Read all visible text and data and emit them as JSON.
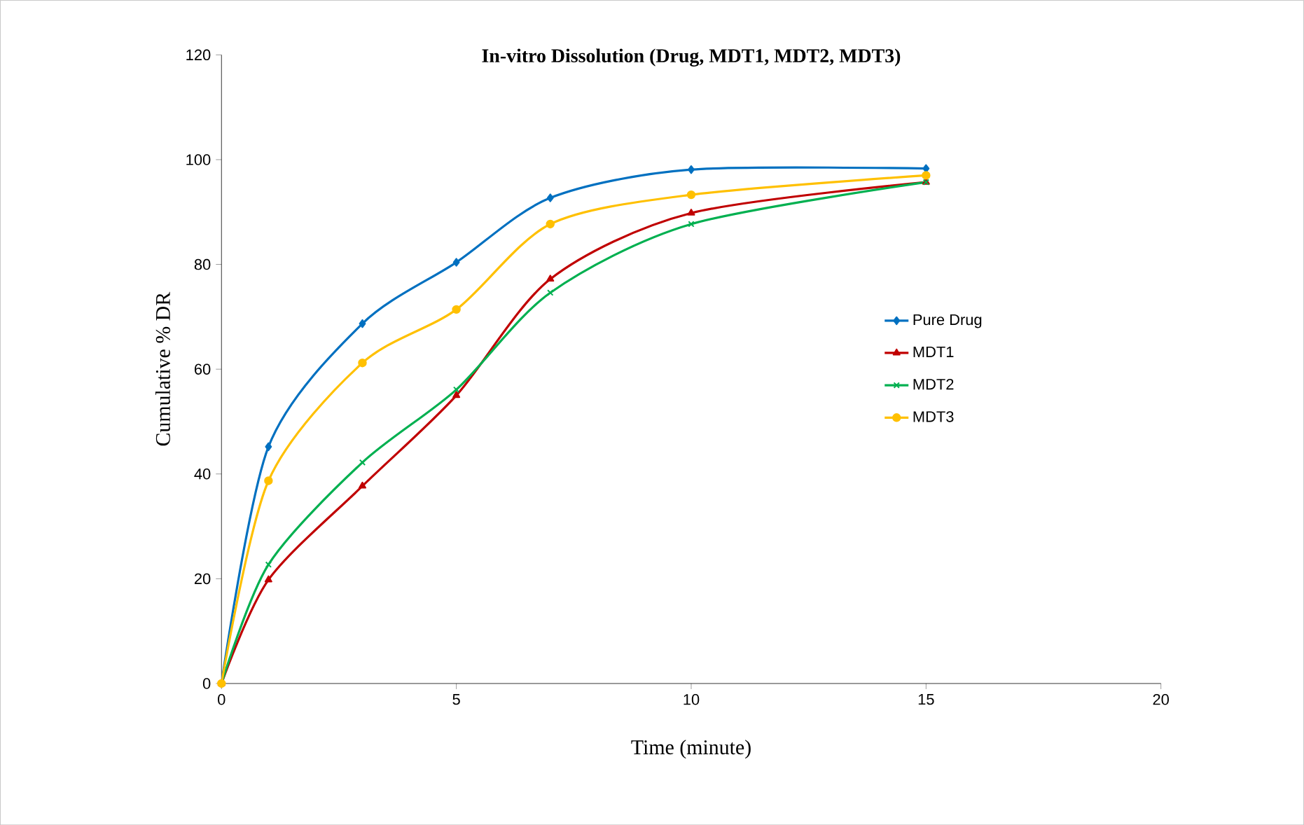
{
  "chart_data": {
    "type": "line",
    "title": "In-vitro Dissolution (Drug, MDT1, MDT2, MDT3)",
    "xlabel": "Time (minute)",
    "ylabel": "Cumulative % DR",
    "x": [
      0,
      1,
      3,
      5,
      7,
      10,
      15
    ],
    "series": [
      {
        "name": "Pure Drug",
        "color": "#0070c0",
        "marker": "diamond",
        "values": [
          0,
          45.2,
          68.7,
          80.4,
          92.7,
          98.1,
          98.3
        ]
      },
      {
        "name": "MDT1",
        "color": "#c00000",
        "marker": "triangle",
        "values": [
          0,
          19.8,
          37.7,
          55.0,
          77.2,
          89.8,
          95.7
        ]
      },
      {
        "name": "MDT2",
        "color": "#00b050",
        "marker": "cross",
        "values": [
          0,
          22.7,
          42.2,
          56.1,
          74.6,
          87.7,
          95.7
        ]
      },
      {
        "name": "MDT3",
        "color": "#ffc000",
        "marker": "circle",
        "values": [
          0,
          38.7,
          61.2,
          71.4,
          87.7,
          93.3,
          97.0
        ]
      }
    ],
    "xlim": [
      0,
      20
    ],
    "xticks": [
      0,
      5,
      10,
      15,
      20
    ],
    "ylim": [
      0,
      120
    ],
    "yticks": [
      0,
      20,
      40,
      60,
      80,
      100,
      120
    ],
    "grid": false,
    "legend": "right"
  }
}
